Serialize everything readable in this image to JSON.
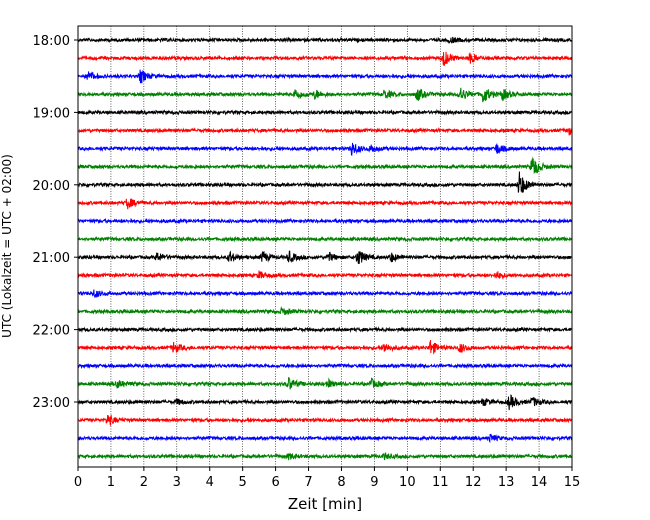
{
  "chart_data": {
    "type": "line",
    "title": "",
    "xlabel": "Zeit  [min]",
    "ylabel": "UTC (Lokalzeit = UTC + 02:00)",
    "xlim": [
      0,
      15
    ],
    "x_ticks": [
      "0",
      "1",
      "2",
      "3",
      "4",
      "5",
      "6",
      "7",
      "8",
      "9",
      "10",
      "11",
      "12",
      "13",
      "14",
      "15"
    ],
    "y_tick_labels": [
      "18:00",
      "19:00",
      "20:00",
      "21:00",
      "22:00",
      "23:00"
    ],
    "grid": "vertical dotted",
    "colors": [
      "#000000",
      "#ff0000",
      "#0000ff",
      "#008000"
    ],
    "rows": [
      {
        "time": "18:00",
        "color": "#000000",
        "events": [
          [
            11.3,
            0.3
          ]
        ]
      },
      {
        "time": "18:15",
        "color": "#ff0000",
        "events": [
          [
            11.1,
            0.9
          ],
          [
            11.9,
            0.5
          ]
        ]
      },
      {
        "time": "18:30",
        "color": "#0000ff",
        "events": [
          [
            0.3,
            0.5
          ],
          [
            1.9,
            0.7
          ]
        ]
      },
      {
        "time": "18:45",
        "color": "#008000",
        "events": [
          [
            6.6,
            0.6
          ],
          [
            7.2,
            0.5
          ],
          [
            9.3,
            0.5
          ],
          [
            10.3,
            0.7
          ],
          [
            11.6,
            0.8
          ],
          [
            12.3,
            1.0
          ],
          [
            12.9,
            0.6
          ]
        ]
      },
      {
        "time": "19:00",
        "color": "#000000",
        "events": []
      },
      {
        "time": "19:15",
        "color": "#ff0000",
        "events": [
          [
            14.9,
            0.4
          ]
        ]
      },
      {
        "time": "19:30",
        "color": "#0000ff",
        "events": [
          [
            8.3,
            0.8
          ],
          [
            8.9,
            0.4
          ],
          [
            12.7,
            0.6
          ]
        ]
      },
      {
        "time": "19:45",
        "color": "#008000",
        "events": [
          [
            13.8,
            1.2
          ]
        ]
      },
      {
        "time": "20:00",
        "color": "#000000",
        "events": [
          [
            13.4,
            1.4
          ]
        ]
      },
      {
        "time": "20:15",
        "color": "#ff0000",
        "events": [
          [
            1.5,
            0.6
          ]
        ]
      },
      {
        "time": "20:30",
        "color": "#0000ff",
        "events": []
      },
      {
        "time": "20:45",
        "color": "#008000",
        "events": []
      },
      {
        "time": "21:00",
        "color": "#000000",
        "events": [
          [
            2.4,
            0.5
          ],
          [
            4.6,
            0.6
          ],
          [
            5.6,
            0.6
          ],
          [
            6.4,
            0.6
          ],
          [
            7.6,
            0.5
          ],
          [
            8.5,
            0.9
          ],
          [
            9.5,
            0.5
          ]
        ]
      },
      {
        "time": "21:15",
        "color": "#ff0000",
        "events": [
          [
            5.5,
            0.4
          ],
          [
            12.7,
            0.4
          ]
        ]
      },
      {
        "time": "21:30",
        "color": "#0000ff",
        "events": [
          [
            0.5,
            0.4
          ]
        ]
      },
      {
        "time": "21:45",
        "color": "#008000",
        "events": [
          [
            6.2,
            0.4
          ]
        ]
      },
      {
        "time": "22:00",
        "color": "#000000",
        "events": []
      },
      {
        "time": "22:15",
        "color": "#ff0000",
        "events": [
          [
            2.9,
            0.6
          ],
          [
            9.3,
            0.5
          ],
          [
            10.7,
            0.8
          ],
          [
            11.6,
            0.5
          ]
        ]
      },
      {
        "time": "22:30",
        "color": "#0000ff",
        "events": []
      },
      {
        "time": "22:45",
        "color": "#008000",
        "events": [
          [
            1.2,
            0.4
          ],
          [
            6.4,
            0.7
          ],
          [
            7.6,
            0.4
          ],
          [
            8.9,
            0.5
          ]
        ]
      },
      {
        "time": "23:00",
        "color": "#000000",
        "events": [
          [
            3.0,
            0.3
          ],
          [
            12.3,
            0.4
          ],
          [
            13.1,
            0.8
          ],
          [
            13.8,
            0.5
          ]
        ]
      },
      {
        "time": "23:15",
        "color": "#ff0000",
        "events": [
          [
            0.9,
            0.6
          ]
        ]
      },
      {
        "time": "23:30",
        "color": "#0000ff",
        "events": [
          [
            12.5,
            0.4
          ]
        ]
      },
      {
        "time": "23:45",
        "color": "#008000",
        "events": [
          [
            6.4,
            0.3
          ],
          [
            9.3,
            0.3
          ]
        ]
      }
    ]
  }
}
